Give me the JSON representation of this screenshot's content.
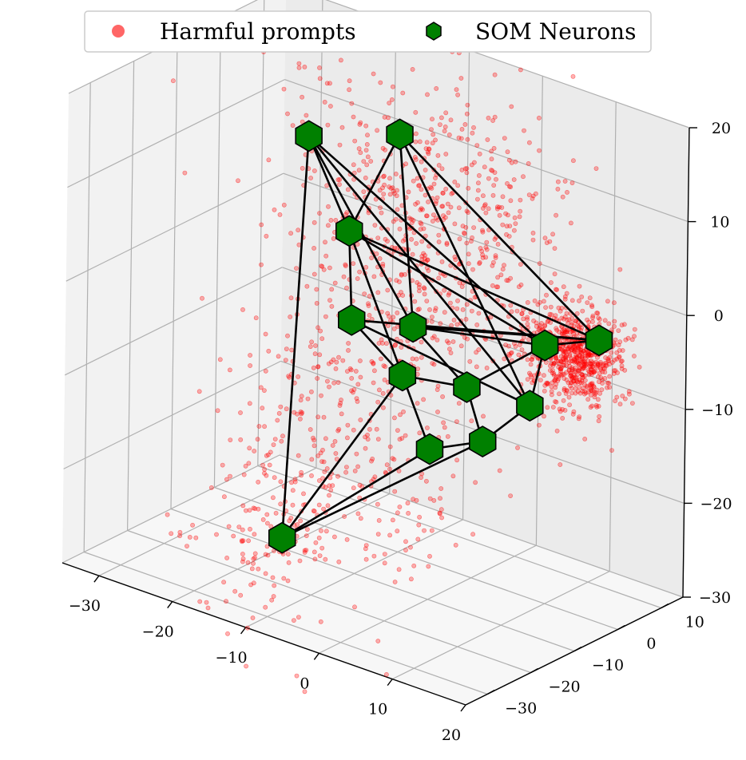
{
  "chart_data": {
    "type": "scatter",
    "projection": "3d",
    "legend": {
      "placement": "top-center",
      "entries": [
        {
          "label": "Harmful prompts",
          "marker": "circle",
          "color": "#ff6666"
        },
        {
          "label": "SOM Neurons",
          "marker": "hexagon",
          "color": "#008000"
        }
      ]
    },
    "axes": {
      "x": {
        "ticks": [
          "−30",
          "−20",
          "−10",
          "0",
          "10",
          "20"
        ],
        "range": [
          -35,
          20
        ]
      },
      "y": {
        "ticks": [
          "−30",
          "−20",
          "−10",
          "0",
          "10"
        ],
        "range": [
          -35,
          15
        ]
      },
      "z": {
        "ticks": [
          "−30",
          "−20",
          "−10",
          "0",
          "10",
          "20"
        ],
        "range": [
          -30,
          20
        ]
      }
    },
    "grid": true,
    "colors": {
      "points": "#ff0000",
      "neurons": "#008000",
      "edges": "#000000",
      "pane_left": "#f2f2f2",
      "pane_right": "#ebebeb",
      "pane_floor": "#f7f7f7"
    },
    "neurons": [
      {
        "x": -24,
        "y": 2,
        "z": 10
      },
      {
        "x": -14,
        "y": 6,
        "z": 12
      },
      {
        "x": -16,
        "y": -2,
        "z": 3
      },
      {
        "x": -12,
        "y": -8,
        "z": -4
      },
      {
        "x": -6,
        "y": -4,
        "z": -4
      },
      {
        "x": -5,
        "y": -8,
        "z": -8
      },
      {
        "x": 2,
        "y": -5,
        "z": -8
      },
      {
        "x": 0,
        "y": -10,
        "z": -14
      },
      {
        "x": 6,
        "y": -8,
        "z": -12
      },
      {
        "x": 10,
        "y": -4,
        "z": -8
      },
      {
        "x": 9,
        "y": 1,
        "z": -3
      },
      {
        "x": 14,
        "y": 5,
        "z": -2
      },
      {
        "x": -14,
        "y": -20,
        "z": -25
      }
    ],
    "edges": [
      [
        0,
        2
      ],
      [
        0,
        12
      ],
      [
        0,
        4
      ],
      [
        0,
        9
      ],
      [
        0,
        10
      ],
      [
        1,
        2
      ],
      [
        1,
        4
      ],
      [
        1,
        11
      ],
      [
        1,
        9
      ],
      [
        2,
        3
      ],
      [
        2,
        5
      ],
      [
        2,
        10
      ],
      [
        2,
        11
      ],
      [
        3,
        5
      ],
      [
        3,
        9
      ],
      [
        3,
        11
      ],
      [
        4,
        6
      ],
      [
        4,
        10
      ],
      [
        5,
        6
      ],
      [
        5,
        7
      ],
      [
        6,
        8
      ],
      [
        6,
        10
      ],
      [
        7,
        8
      ],
      [
        7,
        12
      ],
      [
        8,
        9
      ],
      [
        9,
        10
      ],
      [
        10,
        11
      ],
      [
        4,
        11
      ],
      [
        12,
        5
      ],
      [
        12,
        8
      ]
    ],
    "point_clusters": [
      {
        "center": {
          "x": -14,
          "y": 12,
          "z": 0
        },
        "spread": [
          8,
          8,
          8
        ],
        "count": 700
      },
      {
        "center": {
          "x": 10,
          "y": 6,
          "z": -5
        },
        "spread": [
          3,
          2.5,
          2.5
        ],
        "count": 700
      },
      {
        "center": {
          "x": -8,
          "y": -15,
          "z": -15
        },
        "spread": [
          7,
          7,
          8
        ],
        "count": 300
      },
      {
        "center": {
          "x": -15,
          "y": -22,
          "z": -25
        },
        "spread": [
          4,
          6,
          5
        ],
        "count": 120
      }
    ]
  }
}
